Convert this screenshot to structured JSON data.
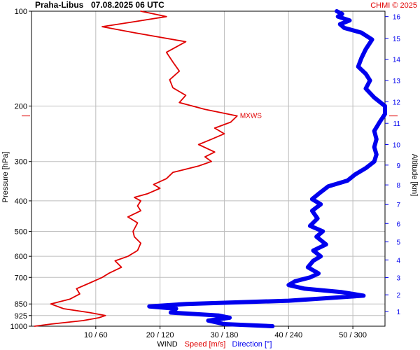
{
  "header": {
    "station": "Praha-Libus",
    "datetime": "07.08.2025 06 UTC",
    "credit": "CHMI © 2025"
  },
  "colors": {
    "speed": "#e00000",
    "direction": "#0000ee",
    "grid": "#bdbdbd",
    "text": "#000000"
  },
  "labels": {
    "y_left": "Pressure [hPa]",
    "y_right": "Altitude [km]",
    "x_wind": "WIND",
    "x_speed": "Speed [m/s]",
    "x_direction": "Direction [°]",
    "mxws": "MXWS"
  },
  "chart_data": {
    "type": "line",
    "y_axis": {
      "label": "Pressure [hPa]",
      "scale": "log",
      "range": [
        1000,
        100
      ],
      "ticks": [
        "100",
        "200",
        "300",
        "400",
        "500",
        "600",
        "700",
        "850",
        "925",
        "1000"
      ]
    },
    "y2_axis": {
      "label": "Altitude [km]",
      "ticks": [
        "1",
        "2",
        "3",
        "4",
        "5",
        "6",
        "7",
        "8",
        "9",
        "10",
        "11",
        "12",
        "13",
        "14",
        "15",
        "16"
      ]
    },
    "x_axis": {
      "speed_range": [
        0,
        55
      ],
      "direction_range": [
        0,
        330
      ],
      "tick_labels": [
        "10 / 60",
        "20 / 120",
        "30 / 180",
        "40 / 240",
        "50 / 300"
      ]
    },
    "mxws_pressure": 215,
    "series": [
      {
        "name": "Speed [m/s]",
        "color": "#e00000",
        "points": [
          [
            1000,
            0.5
          ],
          [
            985,
            3
          ],
          [
            960,
            8
          ],
          [
            940,
            10.5
          ],
          [
            925,
            11.5
          ],
          [
            905,
            9
          ],
          [
            880,
            5
          ],
          [
            850,
            3
          ],
          [
            820,
            6
          ],
          [
            790,
            7.5
          ],
          [
            760,
            7
          ],
          [
            730,
            9
          ],
          [
            700,
            11
          ],
          [
            680,
            12
          ],
          [
            650,
            14
          ],
          [
            620,
            13
          ],
          [
            600,
            15
          ],
          [
            575,
            16.5
          ],
          [
            545,
            17
          ],
          [
            520,
            16
          ],
          [
            500,
            15.8
          ],
          [
            470,
            16.5
          ],
          [
            450,
            15
          ],
          [
            430,
            17
          ],
          [
            415,
            16.5
          ],
          [
            400,
            17
          ],
          [
            390,
            16
          ],
          [
            380,
            18
          ],
          [
            365,
            20
          ],
          [
            355,
            19
          ],
          [
            340,
            21
          ],
          [
            325,
            22
          ],
          [
            310,
            26
          ],
          [
            300,
            28
          ],
          [
            290,
            27
          ],
          [
            280,
            28.5
          ],
          [
            265,
            26
          ],
          [
            255,
            28
          ],
          [
            245,
            30
          ],
          [
            235,
            28.5
          ],
          [
            225,
            31
          ],
          [
            215,
            32
          ],
          [
            205,
            27
          ],
          [
            195,
            23
          ],
          [
            185,
            24
          ],
          [
            175,
            22
          ],
          [
            165,
            21.5
          ],
          [
            155,
            23
          ],
          [
            145,
            22
          ],
          [
            135,
            21
          ],
          [
            125,
            24
          ],
          [
            117,
            16
          ],
          [
            112,
            11
          ],
          [
            108,
            16
          ],
          [
            104,
            21
          ],
          [
            101,
            18
          ],
          [
            100,
            17
          ]
        ]
      },
      {
        "name": "Direction [°]",
        "color": "#0000ee",
        "points": [
          [
            1000,
            225
          ],
          [
            985,
            180
          ],
          [
            960,
            165
          ],
          [
            940,
            185
          ],
          [
            925,
            175
          ],
          [
            905,
            130
          ],
          [
            880,
            135
          ],
          [
            865,
            110
          ],
          [
            850,
            145
          ],
          [
            830,
            240
          ],
          [
            800,
            310
          ],
          [
            780,
            290
          ],
          [
            760,
            255
          ],
          [
            740,
            240
          ],
          [
            720,
            246
          ],
          [
            700,
            260
          ],
          [
            680,
            268
          ],
          [
            650,
            258
          ],
          [
            620,
            263
          ],
          [
            600,
            270
          ],
          [
            575,
            263
          ],
          [
            550,
            275
          ],
          [
            520,
            266
          ],
          [
            500,
            272
          ],
          [
            480,
            260
          ],
          [
            455,
            267
          ],
          [
            430,
            262
          ],
          [
            410,
            270
          ],
          [
            395,
            262
          ],
          [
            380,
            268
          ],
          [
            360,
            277
          ],
          [
            345,
            295
          ],
          [
            330,
            302
          ],
          [
            315,
            312
          ],
          [
            300,
            320
          ],
          [
            285,
            322
          ],
          [
            270,
            320
          ],
          [
            255,
            322
          ],
          [
            240,
            320
          ],
          [
            225,
            325
          ],
          [
            212,
            330
          ],
          [
            200,
            330
          ],
          [
            188,
            320
          ],
          [
            176,
            312
          ],
          [
            166,
            316
          ],
          [
            158,
            312
          ],
          [
            150,
            305
          ],
          [
            141,
            308
          ],
          [
            132,
            312
          ],
          [
            123,
            318
          ],
          [
            117,
            308
          ],
          [
            113,
            292
          ],
          [
            110,
            288
          ],
          [
            107,
            297
          ],
          [
            104,
            286
          ],
          [
            102,
            290
          ],
          [
            100,
            285
          ]
        ]
      }
    ]
  }
}
